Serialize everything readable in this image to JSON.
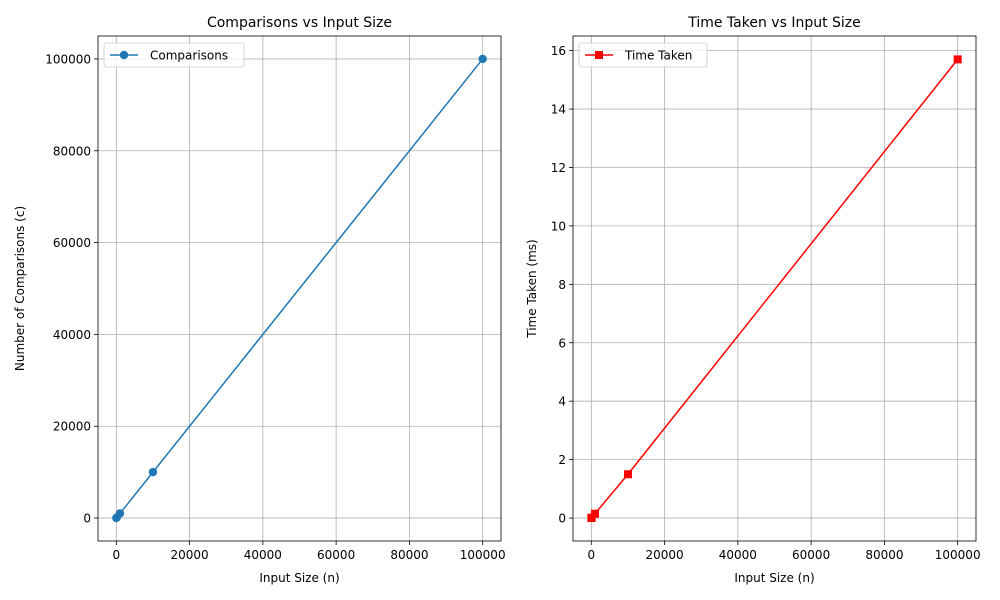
{
  "chart_data": [
    {
      "type": "line",
      "title": "Comparisons vs Input Size",
      "xlabel": "Input Size (n)",
      "ylabel": "Number of Comparisons (c)",
      "xlim": [
        -5000,
        105000
      ],
      "ylim": [
        -5000,
        105000
      ],
      "xticks": [
        0,
        20000,
        40000,
        60000,
        80000,
        100000
      ],
      "yticks": [
        0,
        20000,
        40000,
        60000,
        80000,
        100000
      ],
      "grid": true,
      "legend": "top-left",
      "series": [
        {
          "name": "Comparisons",
          "color": "#1f77b4",
          "marker": "circle",
          "x": [
            10,
            100,
            1000,
            10000,
            100000
          ],
          "y": [
            10,
            100,
            1000,
            10000,
            100000
          ]
        }
      ]
    },
    {
      "type": "line",
      "title": "Time Taken vs Input Size",
      "xlabel": "Input Size (n)",
      "ylabel": "Time Taken (ms)",
      "xlim": [
        -5000,
        105000
      ],
      "ylim": [
        -0.785,
        16.5
      ],
      "xticks": [
        0,
        20000,
        40000,
        60000,
        80000,
        100000
      ],
      "yticks": [
        0,
        2,
        4,
        6,
        8,
        10,
        12,
        14,
        16
      ],
      "grid": true,
      "legend": "top-left",
      "series": [
        {
          "name": "Time Taken",
          "color": "#ff0000",
          "marker": "square",
          "x": [
            10,
            100,
            1000,
            10000,
            100000
          ],
          "y": [
            0.002,
            0.015,
            0.15,
            1.5,
            15.7
          ]
        }
      ]
    }
  ]
}
